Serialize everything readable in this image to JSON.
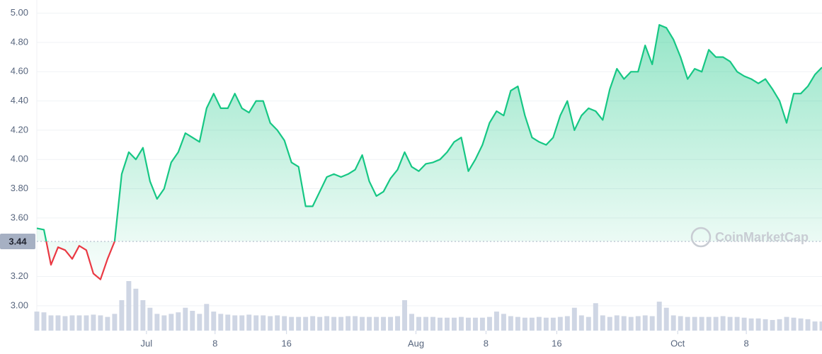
{
  "chart_data": {
    "type": "line",
    "baseline": {
      "value": 3.44,
      "label": "3.44"
    },
    "watermark": "CoinMarketCap",
    "x": [
      0,
      1,
      2,
      3,
      4,
      5,
      6,
      7,
      8,
      9,
      10,
      11,
      12,
      13,
      14,
      15,
      16,
      17,
      18,
      19,
      20,
      21,
      22,
      23,
      24,
      25,
      26,
      27,
      28,
      29,
      30,
      31,
      32,
      33,
      34,
      35,
      36,
      37,
      38,
      39,
      40,
      41,
      42,
      43,
      44,
      45,
      46,
      47,
      48,
      49,
      50,
      51,
      52,
      53,
      54,
      55,
      56,
      57,
      58,
      59,
      60,
      61,
      62,
      63,
      64,
      65,
      66,
      67,
      68,
      69,
      70,
      71,
      72,
      73,
      74,
      75,
      76,
      77,
      78,
      79,
      80,
      81,
      82,
      83,
      84,
      85,
      86,
      87,
      88,
      89,
      90,
      91,
      92,
      93,
      94,
      95,
      96,
      97,
      98,
      99,
      100,
      101,
      102,
      103,
      104,
      105,
      106,
      107,
      108,
      109,
      110,
      111
    ],
    "series": [
      {
        "color": "#16c784",
        "below_color": "#ea3943",
        "values": [
          3.53,
          3.52,
          3.28,
          3.4,
          3.38,
          3.32,
          3.41,
          3.38,
          3.22,
          3.18,
          3.32,
          3.44,
          3.9,
          4.05,
          4.0,
          4.08,
          3.85,
          3.73,
          3.8,
          3.98,
          4.05,
          4.18,
          4.15,
          4.12,
          4.35,
          4.45,
          4.35,
          4.35,
          4.45,
          4.35,
          4.32,
          4.4,
          4.4,
          4.25,
          4.2,
          4.13,
          3.98,
          3.95,
          3.68,
          3.68,
          3.78,
          3.88,
          3.9,
          3.88,
          3.9,
          3.93,
          4.03,
          3.85,
          3.75,
          3.78,
          3.87,
          3.93,
          4.05,
          3.95,
          3.92,
          3.97,
          3.98,
          4.0,
          4.05,
          4.12,
          4.15,
          3.92,
          4.0,
          4.1,
          4.25,
          4.33,
          4.3,
          4.47,
          4.5,
          4.3,
          4.15,
          4.12,
          4.1,
          4.15,
          4.3,
          4.4,
          4.2,
          4.3,
          4.35,
          4.33,
          4.27,
          4.48,
          4.62,
          4.55,
          4.6,
          4.6,
          4.78,
          4.65,
          4.92,
          4.9,
          4.82,
          4.7,
          4.55,
          4.62,
          4.6,
          4.75,
          4.7,
          4.7,
          4.67,
          4.6,
          4.57,
          4.55,
          4.52,
          4.55,
          4.48,
          4.4,
          4.25,
          4.45,
          4.45,
          4.5,
          4.58,
          4.63
        ]
      },
      {
        "type": "bar",
        "color": "#cfd6e4",
        "values": [
          25,
          24,
          20,
          20,
          19,
          20,
          20,
          20,
          21,
          20,
          18,
          22,
          40,
          65,
          55,
          40,
          30,
          22,
          20,
          22,
          24,
          30,
          26,
          22,
          35,
          25,
          22,
          21,
          20,
          20,
          21,
          20,
          20,
          19,
          20,
          19,
          18,
          18,
          18,
          19,
          18,
          19,
          18,
          18,
          19,
          19,
          18,
          18,
          18,
          18,
          18,
          19,
          40,
          22,
          18,
          18,
          18,
          17,
          17,
          17,
          18,
          17,
          17,
          17,
          18,
          25,
          22,
          19,
          18,
          17,
          17,
          18,
          17,
          17,
          18,
          19,
          30,
          20,
          18,
          36,
          20,
          18,
          20,
          19,
          18,
          19,
          20,
          19,
          38,
          30,
          20,
          19,
          18,
          18,
          18,
          18,
          18,
          19,
          18,
          18,
          17,
          16,
          16,
          15,
          14,
          15,
          18,
          17,
          16,
          15,
          12,
          12
        ]
      }
    ],
    "xlim": [
      0,
      111
    ],
    "xticks": [
      {
        "value": 15.5,
        "label": "Jul"
      },
      {
        "value": 25.2,
        "label": "8"
      },
      {
        "value": 35.3,
        "label": "16"
      },
      {
        "value": 53.6,
        "label": "Aug"
      },
      {
        "value": 63.5,
        "label": "8"
      },
      {
        "value": 73.5,
        "label": "16"
      },
      {
        "value": 90.6,
        "label": "Oct"
      },
      {
        "value": 100.3,
        "label": "8"
      }
    ],
    "ylim": [
      2.83,
      5.09
    ],
    "yticks": [
      {
        "value": 3,
        "label": "3.00"
      },
      {
        "value": 3.2,
        "label": "3.20"
      },
      {
        "value": 3.6,
        "label": "3.60"
      },
      {
        "value": 3.8,
        "label": "3.80"
      },
      {
        "value": 4,
        "label": "4.00"
      },
      {
        "value": 4.2,
        "label": "4.20"
      },
      {
        "value": 4.4,
        "label": "4.40"
      },
      {
        "value": 4.6,
        "label": "4.60"
      },
      {
        "value": 4.8,
        "label": "4.80"
      },
      {
        "value": 5,
        "label": "5.00"
      }
    ],
    "grid": true
  }
}
